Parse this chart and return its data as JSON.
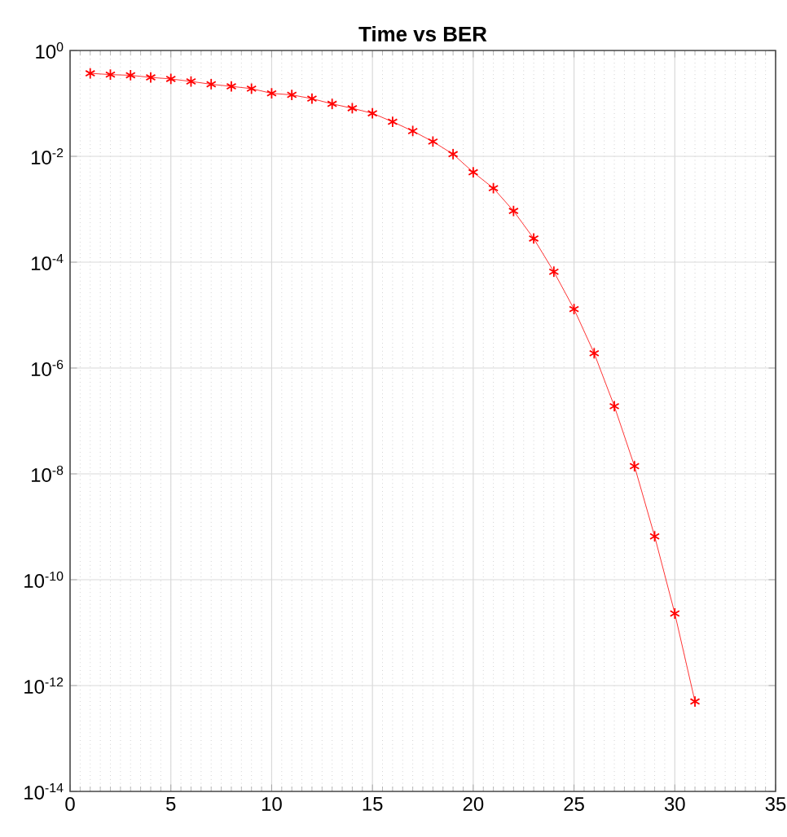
{
  "chart_data": {
    "type": "line",
    "title": "Time vs BER",
    "log": "y",
    "grid": true,
    "marker": "cross",
    "line_style": "solid",
    "xlim": [
      0,
      35
    ],
    "xticks": [
      0,
      5,
      10,
      15,
      20,
      25,
      30,
      35
    ],
    "ylim": [
      1e-14,
      1
    ],
    "yticks": [
      {
        "value": 1e-14,
        "label": "10$^{-14}$"
      },
      {
        "value": 1e-12,
        "label": "10$^{-12}$"
      },
      {
        "value": 1e-10,
        "label": "10$^{-10}$"
      },
      {
        "value": 1e-08,
        "label": "10$^{-8}$"
      },
      {
        "value": 1e-06,
        "label": "10$^{-6}$"
      },
      {
        "value": 0.0001,
        "label": "10$^{-4}$"
      },
      {
        "value": 0.01,
        "label": "10$^{-2}$"
      },
      {
        "value": 1,
        "label": "10$^{0}$"
      }
    ],
    "x": [
      1,
      2,
      3,
      4,
      5,
      6,
      7,
      8,
      9,
      10,
      11,
      12,
      13,
      14,
      15,
      16,
      17,
      18,
      19,
      20,
      21,
      22,
      23,
      24,
      25,
      26,
      27,
      28,
      29,
      30,
      31
    ],
    "series": [
      {
        "color": "#ff0000",
        "values": [
          0.37,
          0.35,
          0.34,
          0.31,
          0.29,
          0.26,
          0.23,
          0.21,
          0.19,
          0.155,
          0.145,
          0.123,
          0.098,
          0.081,
          0.065,
          0.045,
          0.03,
          0.019,
          0.011,
          0.005,
          0.0025,
          0.00093,
          0.00028,
          6.6e-05,
          1.3e-05,
          1.9e-06,
          1.9e-07,
          1.4e-08,
          6.6e-10,
          2.3e-11,
          5e-13
        ]
      }
    ]
  }
}
